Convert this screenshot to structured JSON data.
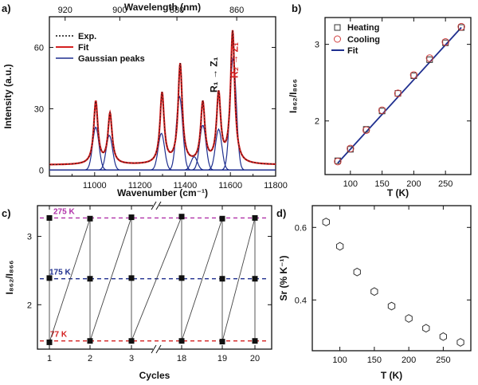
{
  "chart_data": [
    {
      "panel": "a)",
      "type": "line",
      "xlabel": "Wavenumber (cm⁻¹)",
      "ylabel": "Intensity (a.u.)",
      "top_xlabel": "Wavelength (nm)",
      "xlim": [
        10800,
        11800
      ],
      "ylim": [
        -3,
        75
      ],
      "xticks": [
        11000,
        11200,
        11400,
        11600,
        11800
      ],
      "yticks": [
        0,
        30,
        60
      ],
      "top_ticks": [
        920,
        900,
        880,
        860
      ],
      "legend": [
        "Exp.",
        "Fit",
        "Gaussian peaks"
      ],
      "colors": {
        "exp": "#111111",
        "fit": "#d42020",
        "gauss": "#1f2f8f"
      },
      "annotations": [
        {
          "text": "R₁ → Z₁",
          "color": "#111111"
        },
        {
          "text": "R₂ → Z₁",
          "color": "#d42020"
        }
      ],
      "peaks": [
        {
          "center": 11005,
          "height": 21
        },
        {
          "center": 11065,
          "height": 17
        },
        {
          "center": 11295,
          "height": 18
        },
        {
          "center": 11375,
          "height": 36
        },
        {
          "center": 11440,
          "height": 6.5
        },
        {
          "center": 11478,
          "height": 22
        },
        {
          "center": 11548,
          "height": 20
        },
        {
          "center": 11612,
          "height": 55
        }
      ],
      "fit_peaks": [
        11005,
        11068,
        11298,
        11378,
        11478,
        11548,
        11610
      ],
      "fit_heights": [
        33,
        27,
        37,
        51,
        32,
        36,
        67
      ]
    },
    {
      "panel": "b)",
      "type": "scatter",
      "xlabel": "T (K)",
      "ylabel": "I₈₆₂/I₈₆₆",
      "xlim": [
        60,
        290
      ],
      "ylim": [
        1.3,
        3.35
      ],
      "xticks": [
        100,
        150,
        200,
        250
      ],
      "yticks": [
        2,
        3
      ],
      "legend_position": "top-left",
      "series": [
        {
          "name": "Heating",
          "marker": "square",
          "x": [
            80,
            100,
            125,
            150,
            175,
            200,
            225,
            250,
            275
          ],
          "y": [
            1.48,
            1.63,
            1.89,
            2.13,
            2.36,
            2.59,
            2.8,
            3.02,
            3.22
          ]
        },
        {
          "name": "Cooling",
          "marker": "circle",
          "x": [
            80,
            100,
            125,
            150,
            175,
            200,
            225,
            250,
            275
          ],
          "y": [
            1.47,
            1.64,
            1.88,
            2.14,
            2.36,
            2.6,
            2.82,
            3.03,
            3.23
          ]
        },
        {
          "name": "Fit",
          "marker": "line",
          "x": [
            80,
            275
          ],
          "y": [
            1.45,
            3.22
          ]
        }
      ]
    },
    {
      "panel": "c)",
      "type": "line",
      "xlabel": "Cycles",
      "ylabel": "I₈₆₂/I₈₆₆",
      "ylim": [
        1.35,
        3.45
      ],
      "yticks": [
        2,
        3
      ],
      "categories": [
        "1",
        "2",
        "3",
        "18",
        "19",
        "20"
      ],
      "levels": [
        {
          "label": "275 K",
          "value": 3.27,
          "color": "#b030a8"
        },
        {
          "label": "175 K",
          "value": 2.38,
          "color": "#1f2f8f"
        },
        {
          "label": "77 K",
          "value": 1.47,
          "color": "#d42020"
        }
      ],
      "high": [
        3.27,
        3.26,
        3.28,
        3.29,
        3.26,
        3.27
      ],
      "mid": [
        2.39,
        2.38,
        2.39,
        2.39,
        2.38,
        2.38
      ],
      "low": [
        1.45,
        1.47,
        1.47,
        1.47,
        1.46,
        1.47
      ]
    },
    {
      "panel": "d)",
      "type": "scatter",
      "xlabel": "T (K)",
      "ylabel": "Sr (% K⁻¹)",
      "xlim": [
        60,
        290
      ],
      "ylim": [
        0.26,
        0.66
      ],
      "xticks": [
        100,
        150,
        200,
        250
      ],
      "yticks": [
        0.4,
        0.6
      ],
      "x": [
        80,
        100,
        125,
        150,
        175,
        200,
        225,
        250,
        275
      ],
      "y": [
        0.615,
        0.548,
        0.477,
        0.423,
        0.383,
        0.349,
        0.322,
        0.299,
        0.283
      ]
    }
  ]
}
